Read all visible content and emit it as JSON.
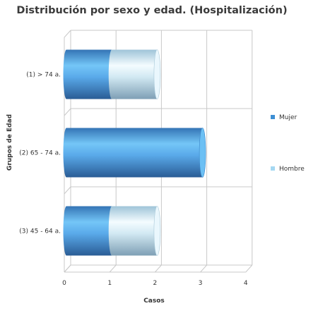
{
  "chart_data": {
    "type": "bar",
    "orientation": "horizontal",
    "style": "3d-cylinder-stacked",
    "title": "Distribución por sexo y edad. (Hospitalización)",
    "xlabel": "Casos",
    "ylabel": "Grupos de Edad",
    "categories": [
      "(1) > 74 a.",
      "(2) 65 - 74 a.",
      "(3) 45 - 64 a."
    ],
    "series": [
      {
        "name": "Mujer",
        "values": [
          1,
          3,
          1
        ],
        "color": "#3d8fd4"
      },
      {
        "name": "Hombre",
        "values": [
          1,
          0,
          1
        ],
        "color": "#a5d8f2"
      }
    ],
    "xlim": [
      0,
      4
    ],
    "xticks": [
      "0",
      "1",
      "2",
      "3",
      "4"
    ],
    "grid": true,
    "legend_position": "right"
  }
}
